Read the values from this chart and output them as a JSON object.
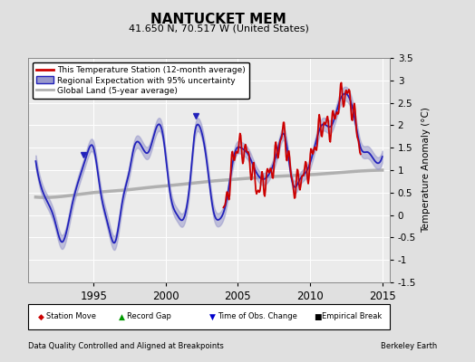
{
  "title": "NANTUCKET MEM",
  "subtitle": "41.650 N, 70.517 W (United States)",
  "ylabel": "Temperature Anomaly (°C)",
  "footer_left": "Data Quality Controlled and Aligned at Breakpoints",
  "footer_right": "Berkeley Earth",
  "xlim": [
    1990.5,
    2015.5
  ],
  "ylim": [
    -1.5,
    3.5
  ],
  "yticks": [
    -1.5,
    -1.0,
    -0.5,
    0.0,
    0.5,
    1.0,
    1.5,
    2.0,
    2.5,
    3.0,
    3.5
  ],
  "xticks": [
    1995,
    2000,
    2005,
    2010,
    2015
  ],
  "bg_color": "#e0e0e0",
  "plot_bg_color": "#ebebeb",
  "regional_color": "#2222bb",
  "regional_fill_color": "#9999cc",
  "station_color": "#cc0000",
  "global_color": "#b0b0b0",
  "legend_items": [
    "This Temperature Station (12-month average)",
    "Regional Expectation with 95% uncertainty",
    "Global Land (5-year average)"
  ],
  "marker_legend": [
    {
      "label": "Station Move",
      "color": "#cc0000",
      "marker": "D"
    },
    {
      "label": "Record Gap",
      "color": "#009900",
      "marker": "^"
    },
    {
      "label": "Time of Obs. Change",
      "color": "#0000cc",
      "marker": "v"
    },
    {
      "label": "Empirical Break",
      "color": "#000000",
      "marker": "s"
    }
  ],
  "time_obs_changes": [
    1994.3,
    2002.1
  ]
}
